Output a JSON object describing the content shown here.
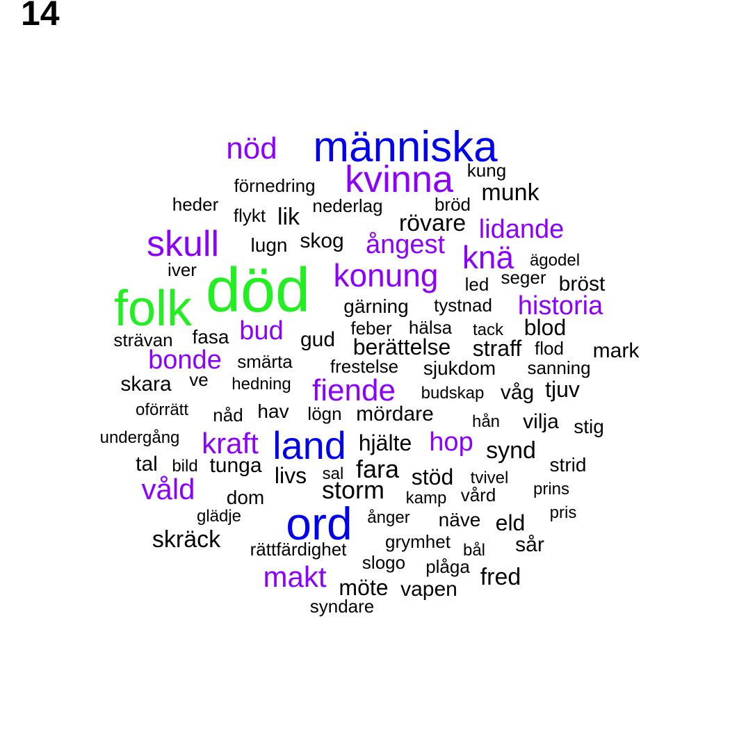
{
  "label": "14",
  "colors": {
    "black": "#000000",
    "purple": "#8c00ff",
    "blue": "#0000ee",
    "green": "#22ee22"
  },
  "words": [
    {
      "text": "död",
      "color": "green"
    },
    {
      "text": "folk",
      "color": "green"
    },
    {
      "text": "människa",
      "color": "blue"
    },
    {
      "text": "ord",
      "color": "blue"
    },
    {
      "text": "land",
      "color": "blue"
    },
    {
      "text": "kvinna",
      "color": "purple"
    },
    {
      "text": "nöd",
      "color": "purple"
    },
    {
      "text": "skull",
      "color": "purple"
    },
    {
      "text": "konung",
      "color": "purple"
    },
    {
      "text": "knä",
      "color": "purple"
    },
    {
      "text": "lidande",
      "color": "purple"
    },
    {
      "text": "ångest",
      "color": "purple"
    },
    {
      "text": "historia",
      "color": "purple"
    },
    {
      "text": "bud",
      "color": "purple"
    },
    {
      "text": "bonde",
      "color": "purple"
    },
    {
      "text": "fiende",
      "color": "purple"
    },
    {
      "text": "kraft",
      "color": "purple"
    },
    {
      "text": "hop",
      "color": "purple"
    },
    {
      "text": "våld",
      "color": "purple"
    },
    {
      "text": "makt",
      "color": "purple"
    },
    {
      "text": "kung",
      "color": "black"
    },
    {
      "text": "förnedring",
      "color": "black"
    },
    {
      "text": "munk",
      "color": "black"
    },
    {
      "text": "heder",
      "color": "black"
    },
    {
      "text": "flykt",
      "color": "black"
    },
    {
      "text": "lik",
      "color": "black"
    },
    {
      "text": "nederlag",
      "color": "black"
    },
    {
      "text": "bröd",
      "color": "black"
    },
    {
      "text": "rövare",
      "color": "black"
    },
    {
      "text": "lugn",
      "color": "black"
    },
    {
      "text": "skog",
      "color": "black"
    },
    {
      "text": "ägodel",
      "color": "black"
    },
    {
      "text": "iver",
      "color": "black"
    },
    {
      "text": "seger",
      "color": "black"
    },
    {
      "text": "led",
      "color": "black"
    },
    {
      "text": "bröst",
      "color": "black"
    },
    {
      "text": "gärning",
      "color": "black"
    },
    {
      "text": "tystnad",
      "color": "black"
    },
    {
      "text": "feber",
      "color": "black"
    },
    {
      "text": "hälsa",
      "color": "black"
    },
    {
      "text": "tack",
      "color": "black"
    },
    {
      "text": "blod",
      "color": "black"
    },
    {
      "text": "strävan",
      "color": "black"
    },
    {
      "text": "fasa",
      "color": "black"
    },
    {
      "text": "gud",
      "color": "black"
    },
    {
      "text": "berättelse",
      "color": "black"
    },
    {
      "text": "straff",
      "color": "black"
    },
    {
      "text": "flod",
      "color": "black"
    },
    {
      "text": "mark",
      "color": "black"
    },
    {
      "text": "smärta",
      "color": "black"
    },
    {
      "text": "frestelse",
      "color": "black"
    },
    {
      "text": "sjukdom",
      "color": "black"
    },
    {
      "text": "sanning",
      "color": "black"
    },
    {
      "text": "skara",
      "color": "black"
    },
    {
      "text": "ve",
      "color": "black"
    },
    {
      "text": "hedning",
      "color": "black"
    },
    {
      "text": "budskap",
      "color": "black"
    },
    {
      "text": "våg",
      "color": "black"
    },
    {
      "text": "tjuv",
      "color": "black"
    },
    {
      "text": "oförrätt",
      "color": "black"
    },
    {
      "text": "nåd",
      "color": "black"
    },
    {
      "text": "hav",
      "color": "black"
    },
    {
      "text": "lögn",
      "color": "black"
    },
    {
      "text": "mördare",
      "color": "black"
    },
    {
      "text": "hån",
      "color": "black"
    },
    {
      "text": "vilja",
      "color": "black"
    },
    {
      "text": "stig",
      "color": "black"
    },
    {
      "text": "undergång",
      "color": "black"
    },
    {
      "text": "hjälte",
      "color": "black"
    },
    {
      "text": "synd",
      "color": "black"
    },
    {
      "text": "tal",
      "color": "black"
    },
    {
      "text": "bild",
      "color": "black"
    },
    {
      "text": "tunga",
      "color": "black"
    },
    {
      "text": "fara",
      "color": "black"
    },
    {
      "text": "strid",
      "color": "black"
    },
    {
      "text": "livs",
      "color": "black"
    },
    {
      "text": "sal",
      "color": "black"
    },
    {
      "text": "stöd",
      "color": "black"
    },
    {
      "text": "tvivel",
      "color": "black"
    },
    {
      "text": "storm",
      "color": "black"
    },
    {
      "text": "prins",
      "color": "black"
    },
    {
      "text": "dom",
      "color": "black"
    },
    {
      "text": "kamp",
      "color": "black"
    },
    {
      "text": "vård",
      "color": "black"
    },
    {
      "text": "glädje",
      "color": "black"
    },
    {
      "text": "ånger",
      "color": "black"
    },
    {
      "text": "näve",
      "color": "black"
    },
    {
      "text": "pris",
      "color": "black"
    },
    {
      "text": "eld",
      "color": "black"
    },
    {
      "text": "skräck",
      "color": "black"
    },
    {
      "text": "grymhet",
      "color": "black"
    },
    {
      "text": "sår",
      "color": "black"
    },
    {
      "text": "rättfärdighet",
      "color": "black"
    },
    {
      "text": "bål",
      "color": "black"
    },
    {
      "text": "slogo",
      "color": "black"
    },
    {
      "text": "plåga",
      "color": "black"
    },
    {
      "text": "fred",
      "color": "black"
    },
    {
      "text": "möte",
      "color": "black"
    },
    {
      "text": "vapen",
      "color": "black"
    },
    {
      "text": "syndare",
      "color": "black"
    }
  ]
}
